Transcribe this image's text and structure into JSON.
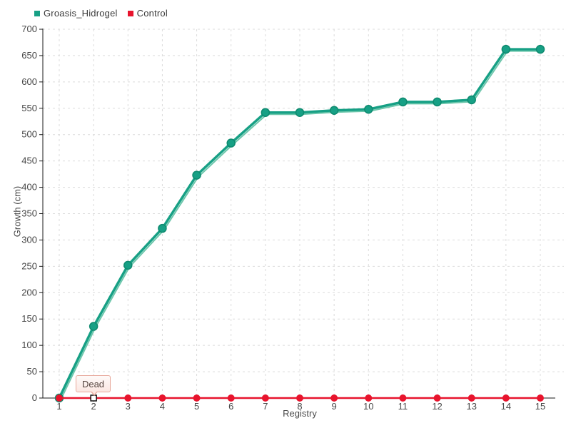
{
  "chart_data": {
    "type": "line",
    "x": [
      1,
      2,
      3,
      4,
      5,
      6,
      7,
      8,
      9,
      10,
      11,
      12,
      13,
      14,
      15
    ],
    "series": [
      {
        "name": "Groasis_Hidrogel",
        "color": "#17a085",
        "stroke_dark": "#0e8a6f",
        "underlay_color": "#6cc6ab",
        "values": [
          0,
          136,
          252,
          322,
          423,
          484,
          542,
          542,
          546,
          548,
          562,
          562,
          566,
          662,
          662
        ]
      },
      {
        "name": "Control",
        "color": "#e8142d",
        "values": [
          0,
          0,
          0,
          0,
          0,
          0,
          0,
          0,
          0,
          0,
          0,
          0,
          0,
          0,
          0
        ]
      }
    ],
    "title": "",
    "xlabel": "Registry",
    "ylabel": "Growth (cm)",
    "ylim": [
      0,
      700
    ],
    "ytick_step": 50,
    "xticks": [
      "1",
      "2",
      "3",
      "4",
      "5",
      "6",
      "7",
      "8",
      "9",
      "10",
      "11",
      "12",
      "13",
      "14",
      "15"
    ],
    "grid": true,
    "grid_color": "#dcdcdc",
    "axis_color": "#1a1a1a",
    "tick_label_color": "#474747",
    "legend_position": "top-left",
    "annotation": {
      "text": "Dead",
      "x": 2,
      "y": 0,
      "series": "Control",
      "marker": "white-square"
    }
  },
  "legend": {
    "items": [
      {
        "label": "Groasis_Hidrogel",
        "color": "#17a085"
      },
      {
        "label": "Control",
        "color": "#e8142d"
      }
    ]
  },
  "axes": {
    "xlabel": "Registry",
    "ylabel": "Growth (cm)"
  },
  "tooltip": {
    "text": "Dead"
  }
}
